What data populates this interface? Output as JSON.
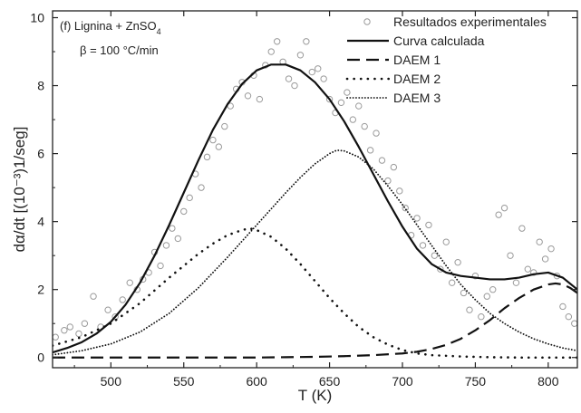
{
  "chart_data": {
    "type": "line",
    "title": "",
    "annotation": {
      "panel": "(f) Lignina + ZnSO",
      "panel_sub": "4",
      "rate": "β = 100 °C/min"
    },
    "xlabel": "T (K)",
    "ylabel": "dα/dt [(10⁻³)1/seg]",
    "xlim": [
      460,
      820
    ],
    "ylim": [
      -0.3,
      10.2
    ],
    "xticks": [
      "500",
      "550",
      "600",
      "650",
      "700",
      "750",
      "800"
    ],
    "xtick_values": [
      500,
      550,
      600,
      650,
      700,
      750,
      800
    ],
    "yticks": [
      "0",
      "2",
      "4",
      "6",
      "8",
      "10"
    ],
    "ytick_values": [
      0,
      2,
      4,
      6,
      8,
      10
    ],
    "grid": false,
    "legend_position": "top-right",
    "series": [
      {
        "name": "Resultados experimentales",
        "kind": "scatter",
        "x": [
          462,
          468,
          472,
          478,
          482,
          488,
          493,
          498,
          503,
          508,
          513,
          518,
          522,
          526,
          530,
          534,
          538,
          542,
          546,
          550,
          554,
          558,
          562,
          566,
          570,
          574,
          578,
          582,
          586,
          590,
          594,
          598,
          602,
          606,
          610,
          614,
          618,
          622,
          626,
          630,
          634,
          638,
          642,
          646,
          650,
          654,
          658,
          662,
          666,
          670,
          674,
          678,
          682,
          686,
          690,
          694,
          698,
          702,
          706,
          710,
          714,
          718,
          722,
          726,
          730,
          734,
          738,
          742,
          746,
          750,
          754,
          758,
          762,
          766,
          770,
          774,
          778,
          782,
          786,
          790,
          794,
          798,
          802,
          806,
          810,
          814,
          818
        ],
        "y": [
          0.6,
          0.8,
          0.9,
          0.7,
          1.0,
          1.8,
          0.9,
          1.4,
          1.2,
          1.7,
          2.2,
          2.0,
          2.3,
          2.5,
          3.1,
          2.7,
          3.3,
          3.8,
          3.5,
          4.3,
          4.7,
          5.4,
          5.0,
          5.9,
          6.4,
          6.2,
          6.8,
          7.4,
          7.9,
          8.1,
          7.7,
          8.3,
          7.6,
          8.6,
          9.0,
          9.3,
          8.7,
          8.2,
          8.0,
          8.9,
          9.3,
          8.4,
          8.5,
          8.2,
          7.6,
          7.2,
          7.5,
          7.8,
          7.0,
          7.4,
          6.8,
          6.1,
          6.6,
          5.8,
          5.2,
          5.6,
          4.9,
          4.4,
          3.6,
          4.1,
          3.3,
          3.9,
          3.0,
          2.6,
          3.4,
          2.2,
          2.8,
          1.9,
          1.4,
          2.4,
          1.2,
          1.8,
          2.0,
          4.2,
          4.4,
          3.0,
          2.2,
          3.8,
          2.6,
          2.5,
          3.4,
          2.9,
          3.2,
          2.4,
          1.5,
          1.2,
          1.0
        ]
      },
      {
        "name": "Curva calculada",
        "kind": "line",
        "dash": "solid",
        "x": [
          460,
          470,
          480,
          490,
          500,
          510,
          520,
          530,
          540,
          550,
          560,
          570,
          580,
          590,
          600,
          610,
          620,
          630,
          640,
          650,
          660,
          670,
          680,
          690,
          700,
          710,
          720,
          730,
          740,
          750,
          760,
          770,
          780,
          790,
          800,
          810,
          820
        ],
        "y": [
          0.15,
          0.28,
          0.45,
          0.7,
          1.05,
          1.55,
          2.2,
          3.0,
          3.9,
          4.85,
          5.8,
          6.7,
          7.45,
          8.05,
          8.45,
          8.62,
          8.62,
          8.45,
          8.1,
          7.6,
          6.95,
          6.2,
          5.4,
          4.6,
          3.85,
          3.2,
          2.75,
          2.5,
          2.4,
          2.35,
          2.3,
          2.3,
          2.35,
          2.45,
          2.5,
          2.35,
          2.0
        ]
      },
      {
        "name": "DAEM 1",
        "kind": "line",
        "dash": "long-dash",
        "x": [
          460,
          500,
          550,
          600,
          620,
          640,
          660,
          680,
          700,
          710,
          720,
          730,
          740,
          750,
          760,
          770,
          780,
          790,
          800,
          805,
          810,
          815,
          820
        ],
        "y": [
          0.0,
          0.0,
          0.0,
          0.0,
          0.01,
          0.02,
          0.04,
          0.07,
          0.12,
          0.17,
          0.25,
          0.37,
          0.55,
          0.8,
          1.1,
          1.45,
          1.75,
          2.0,
          2.15,
          2.18,
          2.15,
          2.05,
          1.9
        ]
      },
      {
        "name": "DAEM 2",
        "kind": "line",
        "dash": "dot",
        "x": [
          460,
          480,
          500,
          520,
          540,
          560,
          570,
          580,
          590,
          595,
          600,
          610,
          620,
          630,
          640,
          650,
          660,
          670,
          680,
          690,
          700,
          710,
          720,
          740,
          760,
          780,
          800,
          820
        ],
        "y": [
          0.35,
          0.6,
          1.0,
          1.6,
          2.35,
          3.05,
          3.35,
          3.6,
          3.75,
          3.8,
          3.75,
          3.55,
          3.2,
          2.75,
          2.25,
          1.75,
          1.3,
          0.9,
          0.6,
          0.38,
          0.22,
          0.12,
          0.07,
          0.03,
          0.01,
          0.0,
          0.0,
          0.0
        ]
      },
      {
        "name": "DAEM 3",
        "kind": "line",
        "dash": "fine-dot",
        "x": [
          460,
          480,
          500,
          520,
          540,
          560,
          580,
          600,
          620,
          630,
          640,
          650,
          655,
          660,
          670,
          680,
          690,
          700,
          710,
          720,
          730,
          740,
          750,
          760,
          770,
          780,
          790,
          800,
          810,
          820
        ],
        "y": [
          0.08,
          0.2,
          0.4,
          0.75,
          1.3,
          2.05,
          2.95,
          3.9,
          4.85,
          5.3,
          5.7,
          6.0,
          6.1,
          6.08,
          5.9,
          5.55,
          5.05,
          4.5,
          3.9,
          3.3,
          2.7,
          2.15,
          1.7,
          1.3,
          1.0,
          0.75,
          0.55,
          0.4,
          0.28,
          0.2
        ]
      }
    ],
    "colors": {
      "line": "#111111",
      "marker": "#9a9a9a",
      "axis": "#222222"
    }
  }
}
